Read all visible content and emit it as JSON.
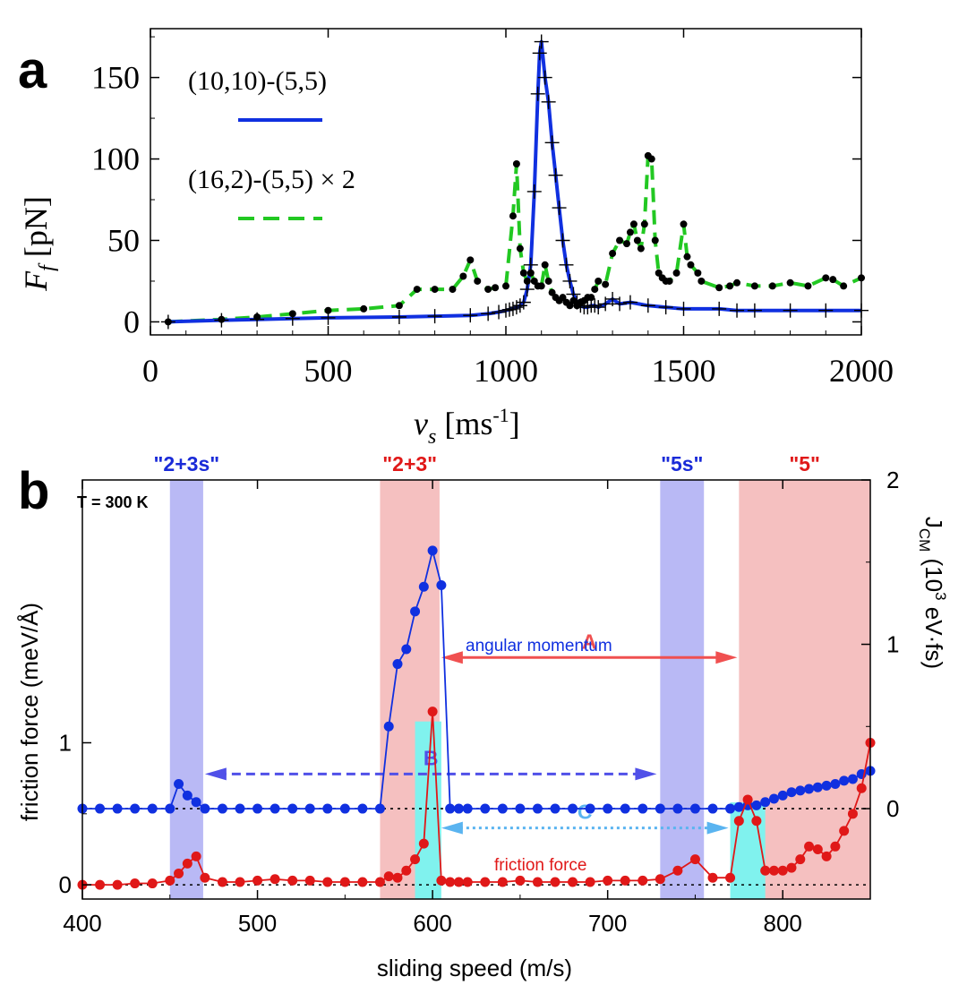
{
  "chart_data": [
    {
      "type": "line",
      "panel_label": "a",
      "xlabel_symbol": "v",
      "xlabel_sub": "s",
      "xlabel_unit": " [ms",
      "xlabel_sup": "-1",
      "xlabel_close": "]",
      "ylabel_symbol": "F",
      "ylabel_sub": "f",
      "ylabel_unit": " [pN]",
      "xlim": [
        0,
        2000
      ],
      "ylim": [
        -8,
        180
      ],
      "xticks": [
        0,
        500,
        1000,
        1500,
        2000
      ],
      "yticks": [
        0,
        50,
        100,
        150
      ],
      "series": [
        {
          "name": "(10,10)-(5,5)",
          "color": "#1030e0",
          "style": "solid",
          "marker": "plus",
          "x": [
            50,
            200,
            300,
            400,
            500,
            700,
            800,
            900,
            950,
            980,
            1000,
            1010,
            1020,
            1030,
            1040,
            1050,
            1060,
            1070,
            1080,
            1090,
            1095,
            1100,
            1110,
            1120,
            1130,
            1140,
            1150,
            1160,
            1170,
            1180,
            1190,
            1200,
            1210,
            1220,
            1230,
            1240,
            1250,
            1260,
            1280,
            1300,
            1320,
            1350,
            1400,
            1450,
            1500,
            1600,
            1650,
            1700,
            1800,
            1900,
            2000
          ],
          "y": [
            0,
            1,
            1.5,
            2,
            2.5,
            3,
            3.5,
            4,
            5,
            6,
            7,
            7.5,
            8,
            9,
            10,
            12,
            20,
            35,
            80,
            140,
            165,
            172,
            150,
            135,
            110,
            90,
            70,
            50,
            35,
            25,
            17,
            12,
            10,
            9,
            9,
            10,
            10,
            9,
            11,
            14,
            11,
            12,
            10,
            9,
            8,
            8,
            7,
            7,
            7,
            7,
            7
          ]
        },
        {
          "name": "(16,2)-(5,5) × 2",
          "color": "#22c822",
          "style": "dashed",
          "marker": "dot",
          "x": [
            50,
            200,
            300,
            400,
            500,
            600,
            700,
            750,
            800,
            850,
            880,
            900,
            920,
            950,
            970,
            1000,
            1020,
            1030,
            1040,
            1050,
            1060,
            1070,
            1080,
            1090,
            1100,
            1110,
            1120,
            1130,
            1140,
            1150,
            1160,
            1170,
            1180,
            1190,
            1200,
            1210,
            1220,
            1230,
            1240,
            1250,
            1260,
            1280,
            1300,
            1320,
            1340,
            1350,
            1360,
            1370,
            1380,
            1390,
            1400,
            1410,
            1420,
            1430,
            1440,
            1450,
            1460,
            1480,
            1500,
            1510,
            1520,
            1540,
            1550,
            1600,
            1630,
            1650,
            1700,
            1750,
            1800,
            1850,
            1900,
            1920,
            1950,
            2000
          ],
          "y": [
            0,
            1.5,
            3,
            5,
            7,
            8,
            10,
            20,
            20,
            20,
            28,
            38,
            25,
            20,
            21,
            22,
            65,
            97,
            45,
            30,
            25,
            30,
            25,
            22,
            22,
            35,
            25,
            18,
            15,
            13,
            15,
            12,
            10,
            13,
            10,
            12,
            13,
            15,
            15,
            20,
            25,
            23,
            42,
            50,
            48,
            55,
            60,
            50,
            45,
            60,
            102,
            100,
            50,
            30,
            27,
            25,
            25,
            30,
            60,
            40,
            35,
            30,
            25,
            21,
            22,
            24,
            22,
            22,
            24,
            22,
            27,
            26,
            22,
            27
          ]
        }
      ]
    },
    {
      "type": "line",
      "panel_label": "b",
      "temperature_label": "T = 300 K",
      "xlabel": "sliding speed (m/s)",
      "ylabel_left": "friction force (meV/Å)",
      "ylabel_right_main": "J",
      "ylabel_right_sub": "CM",
      "ylabel_right_unit_a": " (10",
      "ylabel_right_sup": "3",
      "ylabel_right_unit_b": " eV·fs)",
      "xlim": [
        400,
        850
      ],
      "ylim_left": [
        -0.1,
        2.85
      ],
      "xticks": [
        400,
        500,
        600,
        700,
        800
      ],
      "yticks_left": [
        0,
        1
      ],
      "ylim_right": [
        -0.55,
        2
      ],
      "yticks_right": [
        0,
        1,
        2
      ],
      "regions": [
        {
          "label": "\"2+3s\"",
          "x0": 450,
          "x1": 469,
          "color": "#b9b9f5",
          "label_color": "#1a2bd8"
        },
        {
          "label": "\"2+3\"",
          "x0": 570,
          "x1": 604,
          "color": "#f5c0c0",
          "label_color": "#e01818"
        },
        {
          "label": "\"5s\"",
          "x0": 730,
          "x1": 755,
          "color": "#b9b9f5",
          "label_color": "#1a2bd8"
        },
        {
          "label": "\"5\"",
          "x0": 775,
          "x1": 850,
          "color": "#f5c0c0",
          "label_color": "#e01818"
        }
      ],
      "highlights": [
        {
          "x0": 590,
          "x1": 605,
          "y_top": 1.15,
          "color": "#80f2ee"
        },
        {
          "x0": 770,
          "x1": 790,
          "y_top": 0.58,
          "color": "#80f2ee"
        }
      ],
      "arrows": [
        {
          "label": "A",
          "from": 605,
          "to": 774,
          "y": 1.6,
          "color": "#f05050",
          "style": "solid"
        },
        {
          "label": "B",
          "from": 470,
          "to": 728,
          "y": 0.78,
          "color": "#5050e8",
          "style": "dashed"
        },
        {
          "label": "C",
          "from": 605,
          "to": 769,
          "y": 0.4,
          "color": "#5ab4f0",
          "style": "dotted"
        }
      ],
      "series": [
        {
          "name": "angular momentum",
          "color": "#1030e0",
          "axis": "right",
          "x": [
            400,
            410,
            420,
            430,
            440,
            450,
            455,
            460,
            465,
            470,
            480,
            490,
            500,
            510,
            520,
            530,
            540,
            550,
            560,
            570,
            575,
            580,
            585,
            590,
            595,
            600,
            605,
            610,
            615,
            620,
            630,
            640,
            650,
            660,
            670,
            680,
            690,
            700,
            710,
            720,
            730,
            740,
            750,
            760,
            770,
            775,
            780,
            785,
            790,
            795,
            800,
            805,
            810,
            815,
            820,
            825,
            830,
            835,
            840,
            845,
            850
          ],
          "y": [
            0,
            0,
            0,
            0,
            0,
            0,
            0.15,
            0.08,
            0.04,
            0,
            0,
            0,
            0,
            0,
            0,
            0,
            0,
            0,
            0,
            0,
            0.5,
            0.88,
            0.97,
            1.2,
            1.35,
            1.57,
            1.36,
            0,
            0,
            0,
            0,
            0,
            0,
            0,
            0,
            0,
            0,
            0,
            0,
            0,
            0,
            0,
            0,
            0,
            0,
            0.01,
            0.02,
            0.02,
            0.04,
            0.06,
            0.08,
            0.1,
            0.11,
            0.12,
            0.13,
            0.14,
            0.15,
            0.17,
            0.18,
            0.21,
            0.23
          ]
        },
        {
          "name": "friction force",
          "color": "#e01818",
          "axis": "left",
          "x": [
            400,
            410,
            420,
            430,
            440,
            450,
            455,
            460,
            465,
            470,
            480,
            490,
            500,
            510,
            520,
            530,
            540,
            550,
            560,
            570,
            575,
            580,
            585,
            590,
            595,
            600,
            605,
            610,
            615,
            620,
            630,
            640,
            650,
            660,
            670,
            680,
            690,
            700,
            710,
            720,
            730,
            740,
            750,
            760,
            770,
            775,
            780,
            785,
            790,
            795,
            800,
            805,
            810,
            815,
            820,
            825,
            830,
            835,
            840,
            845,
            850
          ],
          "y": [
            0,
            0,
            0,
            0.01,
            0.01,
            0.03,
            0.08,
            0.15,
            0.2,
            0.05,
            0.02,
            0.02,
            0.03,
            0.04,
            0.03,
            0.03,
            0.02,
            0.02,
            0.02,
            0.02,
            0.06,
            0.05,
            0.1,
            0.18,
            0.29,
            1.22,
            0.03,
            0.02,
            0.02,
            0.02,
            0.02,
            0.02,
            0.03,
            0.02,
            0.02,
            0.02,
            0.02,
            0.03,
            0.03,
            0.03,
            0.04,
            0.1,
            0.18,
            0.05,
            0.05,
            0.45,
            0.6,
            0.45,
            0.1,
            0.1,
            0.1,
            0.12,
            0.18,
            0.27,
            0.25,
            0.2,
            0.27,
            0.38,
            0.5,
            0.68,
            1.0
          ]
        }
      ]
    }
  ]
}
